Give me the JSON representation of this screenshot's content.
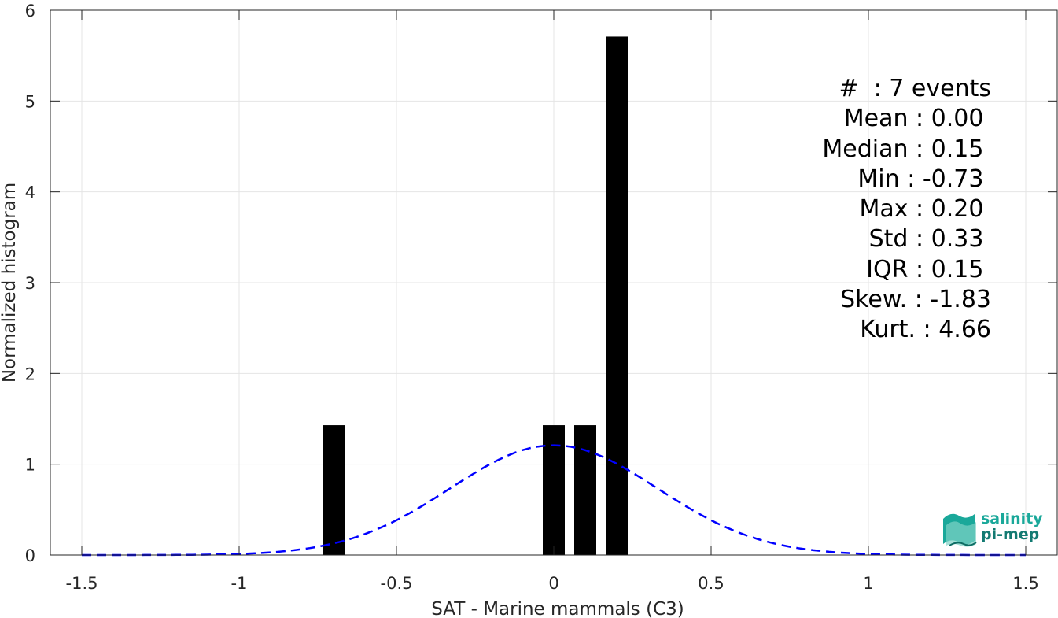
{
  "chart_data": {
    "type": "bar",
    "xlabel": "SAT - Marine mammals (C3)",
    "ylabel": "Normalized histogram",
    "xlim": [
      -1.6,
      1.6
    ],
    "ylim": [
      0,
      6
    ],
    "x_ticks": [
      -1.5,
      -1,
      -0.5,
      0,
      0.5,
      1,
      1.5
    ],
    "x_tick_labels": [
      "-1.5",
      "-1",
      "-0.5",
      "0",
      "0.5",
      "1",
      "1.5"
    ],
    "y_ticks": [
      0,
      1,
      2,
      3,
      4,
      5,
      6
    ],
    "y_tick_labels": [
      "0",
      "1",
      "2",
      "3",
      "4",
      "5",
      "6"
    ],
    "grid": true,
    "bin_width": 0.07,
    "bars": [
      {
        "center": -0.7,
        "value": 1.43
      },
      {
        "center": 0.0,
        "value": 1.43
      },
      {
        "center": 0.1,
        "value": 1.43
      },
      {
        "center": 0.2,
        "value": 5.71
      }
    ],
    "fit_curve": {
      "style": "dashed",
      "color": "#0000ff",
      "mean": 0.0,
      "std": 0.33,
      "x_range": [
        -1.5,
        1.5
      ]
    },
    "bar_color": "#000000"
  },
  "stats": [
    {
      "id": "count",
      "text": "#  : 7 events"
    },
    {
      "id": "mean",
      "text": "Mean : 0.00 "
    },
    {
      "id": "median",
      "text": "Median : 0.15 "
    },
    {
      "id": "min",
      "text": "Min : -0.73 "
    },
    {
      "id": "max",
      "text": "Max : 0.20 "
    },
    {
      "id": "std",
      "text": "Std : 0.33 "
    },
    {
      "id": "iqr",
      "text": "IQR : 0.15 "
    },
    {
      "id": "skew",
      "text": "Skew. : -1.83"
    },
    {
      "id": "kurt",
      "text": "Kurt. : 4.66"
    }
  ],
  "logo": {
    "line1": "salinity",
    "line2": "pi-mep",
    "color1": "#1aa89a",
    "color2": "#137a72"
  }
}
